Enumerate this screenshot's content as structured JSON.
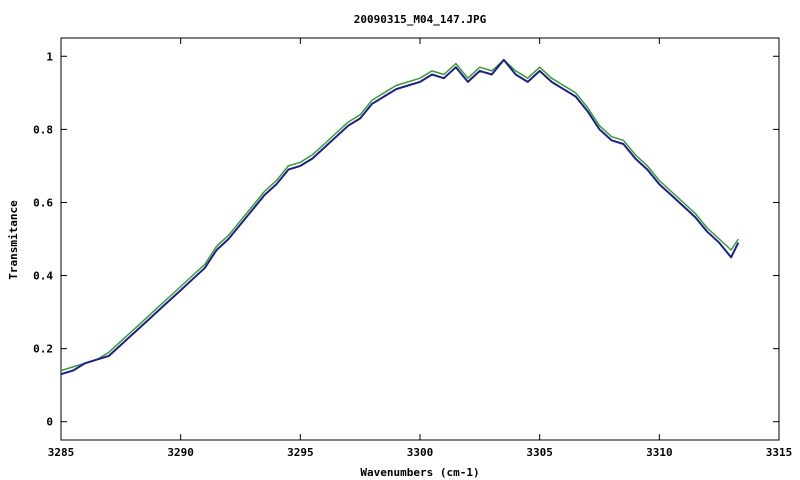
{
  "chart_data": {
    "type": "line",
    "title": "20090315_M04_147.JPG",
    "xlabel": "Wavenumbers (cm-1)",
    "ylabel": "Transmitance",
    "xlim": [
      3285,
      3315
    ],
    "ylim": [
      -0.05,
      1.05
    ],
    "x_ticks": [
      3285,
      3290,
      3295,
      3300,
      3305,
      3310,
      3315
    ],
    "y_ticks": [
      0,
      0.2,
      0.4,
      0.6,
      0.8,
      1
    ],
    "y_tick_labels": [
      "0",
      "0.2",
      "0.4",
      "0.6",
      "0.8",
      "1"
    ],
    "grid": false,
    "colors": {
      "frame": "#000000",
      "background": "#ffffff"
    },
    "series": [
      {
        "color": "#3a9a3a",
        "x": [
          3285.0,
          3285.5,
          3286.0,
          3286.5,
          3287.0,
          3287.5,
          3288.0,
          3288.5,
          3289.0,
          3289.5,
          3290.0,
          3290.5,
          3291.0,
          3291.5,
          3292.0,
          3292.5,
          3293.0,
          3293.5,
          3294.0,
          3294.5,
          3295.0,
          3295.5,
          3296.0,
          3296.5,
          3297.0,
          3297.5,
          3298.0,
          3298.5,
          3299.0,
          3299.5,
          3300.0,
          3300.5,
          3301.0,
          3301.5,
          3302.0,
          3302.5,
          3303.0,
          3303.5,
          3304.0,
          3304.5,
          3305.0,
          3305.5,
          3306.0,
          3306.5,
          3307.0,
          3307.5,
          3308.0,
          3308.5,
          3309.0,
          3309.5,
          3310.0,
          3310.5,
          3311.0,
          3311.5,
          3312.0,
          3312.5,
          3313.0,
          3313.3
        ],
        "y": [
          0.14,
          0.15,
          0.16,
          0.17,
          0.19,
          0.22,
          0.25,
          0.28,
          0.31,
          0.34,
          0.37,
          0.4,
          0.43,
          0.48,
          0.51,
          0.55,
          0.59,
          0.63,
          0.66,
          0.7,
          0.71,
          0.73,
          0.76,
          0.79,
          0.82,
          0.84,
          0.88,
          0.9,
          0.92,
          0.93,
          0.94,
          0.96,
          0.95,
          0.98,
          0.94,
          0.97,
          0.96,
          0.99,
          0.96,
          0.94,
          0.97,
          0.94,
          0.92,
          0.9,
          0.86,
          0.81,
          0.78,
          0.77,
          0.73,
          0.7,
          0.66,
          0.63,
          0.6,
          0.57,
          0.53,
          0.5,
          0.47,
          0.5
        ]
      },
      {
        "color": "#1e2080",
        "x": [
          3285.0,
          3285.5,
          3286.0,
          3286.5,
          3287.0,
          3287.5,
          3288.0,
          3288.5,
          3289.0,
          3289.5,
          3290.0,
          3290.5,
          3291.0,
          3291.5,
          3292.0,
          3292.5,
          3293.0,
          3293.5,
          3294.0,
          3294.5,
          3295.0,
          3295.5,
          3296.0,
          3296.5,
          3297.0,
          3297.5,
          3298.0,
          3298.5,
          3299.0,
          3299.5,
          3300.0,
          3300.5,
          3301.0,
          3301.5,
          3302.0,
          3302.5,
          3303.0,
          3303.5,
          3304.0,
          3304.5,
          3305.0,
          3305.5,
          3306.0,
          3306.5,
          3307.0,
          3307.5,
          3308.0,
          3308.5,
          3309.0,
          3309.5,
          3310.0,
          3310.5,
          3311.0,
          3311.5,
          3312.0,
          3312.5,
          3313.0,
          3313.3
        ],
        "y": [
          0.13,
          0.14,
          0.16,
          0.17,
          0.18,
          0.21,
          0.24,
          0.27,
          0.3,
          0.33,
          0.36,
          0.39,
          0.42,
          0.47,
          0.5,
          0.54,
          0.58,
          0.62,
          0.65,
          0.69,
          0.7,
          0.72,
          0.75,
          0.78,
          0.81,
          0.83,
          0.87,
          0.89,
          0.91,
          0.92,
          0.93,
          0.95,
          0.94,
          0.97,
          0.93,
          0.96,
          0.95,
          0.99,
          0.95,
          0.93,
          0.96,
          0.93,
          0.91,
          0.89,
          0.85,
          0.8,
          0.77,
          0.76,
          0.72,
          0.69,
          0.65,
          0.62,
          0.59,
          0.56,
          0.52,
          0.49,
          0.45,
          0.49
        ]
      }
    ]
  }
}
